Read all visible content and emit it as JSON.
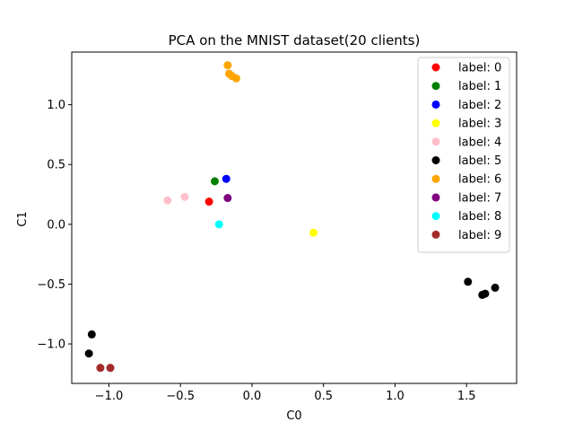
{
  "chart_data": {
    "type": "scatter",
    "title": "PCA on the MNIST dataset(20 clients)",
    "xlabel": "C0",
    "ylabel": "C1",
    "xlim": [
      -1.26,
      1.85
    ],
    "ylim": [
      -1.33,
      1.44
    ],
    "xticks": [
      -1.0,
      -0.5,
      0.0,
      0.5,
      1.0,
      1.5
    ],
    "xtick_labels": [
      "−1.0",
      "−0.5",
      "0.0",
      "0.5",
      "1.0",
      "1.5"
    ],
    "yticks": [
      -1.0,
      -0.5,
      0.0,
      0.5,
      1.0
    ],
    "ytick_labels": [
      "−1.0",
      "−0.5",
      "0.0",
      "0.5",
      "1.0"
    ],
    "grid": false,
    "legend_position": "top-right",
    "series": [
      {
        "name": "label: 0",
        "color": "#ff0000",
        "points": [
          [
            -0.3,
            0.19
          ]
        ]
      },
      {
        "name": "label: 1",
        "color": "#008000",
        "points": [
          [
            -0.26,
            0.36
          ]
        ]
      },
      {
        "name": "label: 2",
        "color": "#0000ff",
        "points": [
          [
            -0.18,
            0.38
          ]
        ]
      },
      {
        "name": "label: 3",
        "color": "#ffff00",
        "points": [
          [
            0.43,
            -0.07
          ]
        ]
      },
      {
        "name": "label: 4",
        "color": "#ffc0cb",
        "points": [
          [
            -0.59,
            0.2
          ],
          [
            -0.47,
            0.23
          ]
        ]
      },
      {
        "name": "label: 5",
        "color": "#000000",
        "points": [
          [
            1.51,
            -0.48
          ],
          [
            1.61,
            -0.59
          ],
          [
            1.63,
            -0.58
          ],
          [
            1.7,
            -0.53
          ],
          [
            -1.12,
            -0.92
          ],
          [
            -1.14,
            -1.08
          ]
        ]
      },
      {
        "name": "label: 6",
        "color": "#ffa500",
        "points": [
          [
            -0.17,
            1.33
          ],
          [
            -0.16,
            1.26
          ],
          [
            -0.14,
            1.24
          ],
          [
            -0.11,
            1.22
          ]
        ]
      },
      {
        "name": "label: 7",
        "color": "#800080",
        "points": [
          [
            -0.17,
            0.22
          ]
        ]
      },
      {
        "name": "label: 8",
        "color": "#00ffff",
        "points": [
          [
            -0.23,
            0.0
          ]
        ]
      },
      {
        "name": "label: 9",
        "color": "#a52a2a",
        "points": [
          [
            -1.06,
            -1.2
          ],
          [
            -0.99,
            -1.2
          ]
        ]
      }
    ]
  }
}
